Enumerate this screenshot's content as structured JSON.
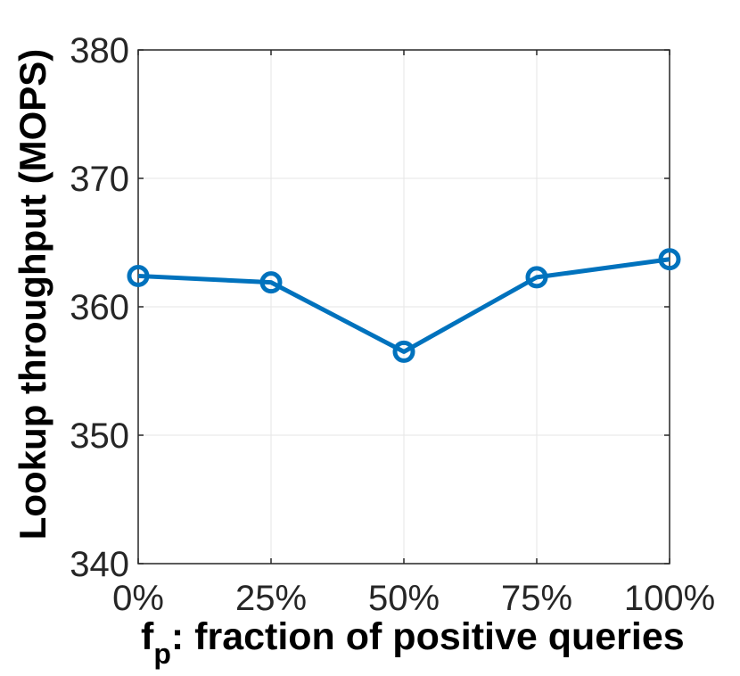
{
  "chart_data": {
    "type": "line",
    "ylabel": "Lookup throughput (MOPS)",
    "xlabel": {
      "base": "f",
      "subscript": "p",
      "text": ": fraction of positive queries"
    },
    "categories": [
      "0%",
      "25%",
      "50%",
      "75%",
      "100%"
    ],
    "series": [
      {
        "name": "Lookup throughput",
        "color": "#0072bd",
        "values": [
          362.4,
          361.9,
          356.5,
          362.3,
          363.7
        ]
      }
    ],
    "ylim": [
      340,
      380
    ],
    "yticks": [
      340,
      350,
      360,
      370,
      380
    ],
    "grid": true
  }
}
